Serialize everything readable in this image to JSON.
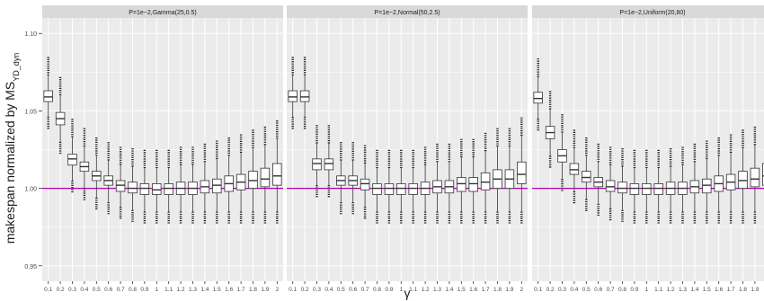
{
  "chart_data": {
    "type": "boxplot",
    "ylabel_main": "makespan normalized by MS",
    "ylabel_sub": "YD_dyn",
    "xlabel": "γ",
    "ylim": [
      0.94,
      1.11
    ],
    "yticks": [
      0.95,
      1.0,
      1.05,
      1.1
    ],
    "ytick_labels": [
      "0.95",
      "1.00",
      "1.05",
      "1.10"
    ],
    "reference_line": {
      "y": 1.0,
      "color": "#b000b0"
    },
    "colors": {
      "panel_bg": "#ebebeb",
      "strip_bg": "#d9d9d9",
      "grid": "#ffffff",
      "box_fill": "#ffffff",
      "box_stroke": "#333333"
    },
    "categories": [
      "0.1",
      "0.2",
      "0.3",
      "0.4",
      "0.5",
      "0.6",
      "0.7",
      "0.8",
      "0.9",
      "1",
      "1.1",
      "1.2",
      "1.3",
      "1.4",
      "1.5",
      "1.6",
      "1.7",
      "1.8",
      "1.9",
      "2"
    ],
    "panels": [
      {
        "title": "P=1e−2,Gamma(25,0.5)",
        "boxes": [
          {
            "x": "0.1",
            "q1": 1.056,
            "median": 1.059,
            "q3": 1.063,
            "whislo": 1.046,
            "whishi": 1.073
          },
          {
            "x": "0.2",
            "q1": 1.041,
            "median": 1.045,
            "q3": 1.049,
            "whislo": 1.03,
            "whishi": 1.06
          },
          {
            "x": "0.3",
            "q1": 1.015,
            "median": 1.019,
            "q3": 1.022,
            "whislo": 1.005,
            "whishi": 1.033
          },
          {
            "x": "0.4",
            "q1": 1.011,
            "median": 1.014,
            "q3": 1.017,
            "whislo": 1.0,
            "whishi": 1.027
          },
          {
            "x": "0.5",
            "q1": 1.005,
            "median": 1.008,
            "q3": 1.011,
            "whislo": 0.994,
            "whishi": 1.021
          },
          {
            "x": "0.6",
            "q1": 1.002,
            "median": 1.005,
            "q3": 1.008,
            "whislo": 0.991,
            "whishi": 1.018
          },
          {
            "x": "0.7",
            "q1": 0.998,
            "median": 1.002,
            "q3": 1.005,
            "whislo": 0.988,
            "whishi": 1.015
          },
          {
            "x": "0.8",
            "q1": 0.997,
            "median": 1.0,
            "q3": 1.004,
            "whislo": 0.986,
            "whishi": 1.014
          },
          {
            "x": "0.9",
            "q1": 0.996,
            "median": 1.0,
            "q3": 1.003,
            "whislo": 0.985,
            "whishi": 1.013
          },
          {
            "x": "1",
            "q1": 0.996,
            "median": 0.999,
            "q3": 1.003,
            "whislo": 0.985,
            "whishi": 1.013
          },
          {
            "x": "1.1",
            "q1": 0.996,
            "median": 1.0,
            "q3": 1.003,
            "whislo": 0.985,
            "whishi": 1.013
          },
          {
            "x": "1.2",
            "q1": 0.996,
            "median": 1.0,
            "q3": 1.004,
            "whislo": 0.985,
            "whishi": 1.015
          },
          {
            "x": "1.3",
            "q1": 0.996,
            "median": 1.0,
            "q3": 1.004,
            "whislo": 0.985,
            "whishi": 1.015
          },
          {
            "x": "1.4",
            "q1": 0.997,
            "median": 1.001,
            "q3": 1.005,
            "whislo": 0.985,
            "whishi": 1.017
          },
          {
            "x": "1.5",
            "q1": 0.997,
            "median": 1.002,
            "q3": 1.006,
            "whislo": 0.985,
            "whishi": 1.019
          },
          {
            "x": "1.6",
            "q1": 0.998,
            "median": 1.003,
            "q3": 1.008,
            "whislo": 0.985,
            "whishi": 1.021
          },
          {
            "x": "1.7",
            "q1": 0.999,
            "median": 1.004,
            "q3": 1.009,
            "whislo": 0.985,
            "whishi": 1.023
          },
          {
            "x": "1.8",
            "q1": 1.0,
            "median": 1.005,
            "q3": 1.011,
            "whislo": 0.985,
            "whishi": 1.026
          },
          {
            "x": "1.9",
            "q1": 1.001,
            "median": 1.006,
            "q3": 1.013,
            "whislo": 0.985,
            "whishi": 1.028
          },
          {
            "x": "2",
            "q1": 1.002,
            "median": 1.008,
            "q3": 1.016,
            "whislo": 0.985,
            "whishi": 1.032
          }
        ]
      },
      {
        "title": "P=1e−2,Normal(50,2.5)",
        "boxes": [
          {
            "x": "0.1",
            "q1": 1.056,
            "median": 1.059,
            "q3": 1.063,
            "whislo": 1.046,
            "whishi": 1.073
          },
          {
            "x": "0.2",
            "q1": 1.056,
            "median": 1.059,
            "q3": 1.063,
            "whislo": 1.046,
            "whishi": 1.073
          },
          {
            "x": "0.3",
            "q1": 1.012,
            "median": 1.016,
            "q3": 1.019,
            "whislo": 1.002,
            "whishi": 1.029
          },
          {
            "x": "0.4",
            "q1": 1.012,
            "median": 1.016,
            "q3": 1.019,
            "whislo": 1.002,
            "whishi": 1.029
          },
          {
            "x": "0.5",
            "q1": 1.002,
            "median": 1.005,
            "q3": 1.008,
            "whislo": 0.991,
            "whishi": 1.018
          },
          {
            "x": "0.6",
            "q1": 1.002,
            "median": 1.005,
            "q3": 1.008,
            "whislo": 0.991,
            "whishi": 1.018
          },
          {
            "x": "0.7",
            "q1": 0.999,
            "median": 1.003,
            "q3": 1.006,
            "whislo": 0.988,
            "whishi": 1.016
          },
          {
            "x": "0.8",
            "q1": 0.996,
            "median": 1.0,
            "q3": 1.003,
            "whislo": 0.985,
            "whishi": 1.013
          },
          {
            "x": "0.9",
            "q1": 0.996,
            "median": 1.0,
            "q3": 1.003,
            "whislo": 0.985,
            "whishi": 1.013
          },
          {
            "x": "1",
            "q1": 0.996,
            "median": 1.0,
            "q3": 1.003,
            "whislo": 0.985,
            "whishi": 1.013
          },
          {
            "x": "1.1",
            "q1": 0.996,
            "median": 1.0,
            "q3": 1.003,
            "whislo": 0.985,
            "whishi": 1.013
          },
          {
            "x": "1.2",
            "q1": 0.996,
            "median": 1.0,
            "q3": 1.004,
            "whislo": 0.985,
            "whishi": 1.015
          },
          {
            "x": "1.3",
            "q1": 0.997,
            "median": 1.001,
            "q3": 1.005,
            "whislo": 0.985,
            "whishi": 1.017
          },
          {
            "x": "1.4",
            "q1": 0.997,
            "median": 1.001,
            "q3": 1.005,
            "whislo": 0.985,
            "whishi": 1.017
          },
          {
            "x": "1.5",
            "q1": 0.998,
            "median": 1.003,
            "q3": 1.007,
            "whislo": 0.985,
            "whishi": 1.02
          },
          {
            "x": "1.6",
            "q1": 0.998,
            "median": 1.003,
            "q3": 1.007,
            "whislo": 0.985,
            "whishi": 1.02
          },
          {
            "x": "1.7",
            "q1": 0.999,
            "median": 1.004,
            "q3": 1.01,
            "whislo": 0.985,
            "whishi": 1.024
          },
          {
            "x": "1.8",
            "q1": 1.0,
            "median": 1.006,
            "q3": 1.012,
            "whislo": 0.985,
            "whishi": 1.027
          },
          {
            "x": "1.9",
            "q1": 1.0,
            "median": 1.006,
            "q3": 1.012,
            "whislo": 0.985,
            "whishi": 1.027
          },
          {
            "x": "2",
            "q1": 1.003,
            "median": 1.009,
            "q3": 1.017,
            "whislo": 0.985,
            "whishi": 1.034
          }
        ]
      },
      {
        "title": "P=1e−2,Uniform(20,80)",
        "boxes": [
          {
            "x": "0.1",
            "q1": 1.055,
            "median": 1.058,
            "q3": 1.062,
            "whislo": 1.045,
            "whishi": 1.072
          },
          {
            "x": "0.2",
            "q1": 1.032,
            "median": 1.036,
            "q3": 1.04,
            "whislo": 1.021,
            "whishi": 1.051
          },
          {
            "x": "0.3",
            "q1": 1.017,
            "median": 1.021,
            "q3": 1.025,
            "whislo": 1.006,
            "whishi": 1.036
          },
          {
            "x": "0.4",
            "q1": 1.009,
            "median": 1.012,
            "q3": 1.016,
            "whislo": 0.998,
            "whishi": 1.026
          },
          {
            "x": "0.5",
            "q1": 1.004,
            "median": 1.007,
            "q3": 1.011,
            "whislo": 0.993,
            "whishi": 1.021
          },
          {
            "x": "0.6",
            "q1": 1.001,
            "median": 1.004,
            "q3": 1.007,
            "whislo": 0.99,
            "whishi": 1.017
          },
          {
            "x": "0.7",
            "q1": 0.998,
            "median": 1.001,
            "q3": 1.005,
            "whislo": 0.987,
            "whishi": 1.015
          },
          {
            "x": "0.8",
            "q1": 0.997,
            "median": 1.0,
            "q3": 1.004,
            "whislo": 0.986,
            "whishi": 1.014
          },
          {
            "x": "0.9",
            "q1": 0.996,
            "median": 1.0,
            "q3": 1.003,
            "whislo": 0.985,
            "whishi": 1.013
          },
          {
            "x": "1",
            "q1": 0.996,
            "median": 1.0,
            "q3": 1.003,
            "whislo": 0.985,
            "whishi": 1.013
          },
          {
            "x": "1.1",
            "q1": 0.996,
            "median": 1.0,
            "q3": 1.003,
            "whislo": 0.985,
            "whishi": 1.013
          },
          {
            "x": "1.2",
            "q1": 0.996,
            "median": 1.0,
            "q3": 1.004,
            "whislo": 0.985,
            "whishi": 1.014
          },
          {
            "x": "1.3",
            "q1": 0.996,
            "median": 1.0,
            "q3": 1.004,
            "whislo": 0.985,
            "whishi": 1.015
          },
          {
            "x": "1.4",
            "q1": 0.997,
            "median": 1.001,
            "q3": 1.005,
            "whislo": 0.985,
            "whishi": 1.017
          },
          {
            "x": "1.5",
            "q1": 0.997,
            "median": 1.002,
            "q3": 1.006,
            "whislo": 0.985,
            "whishi": 1.019
          },
          {
            "x": "1.6",
            "q1": 0.998,
            "median": 1.003,
            "q3": 1.008,
            "whislo": 0.985,
            "whishi": 1.021
          },
          {
            "x": "1.7",
            "q1": 0.999,
            "median": 1.004,
            "q3": 1.009,
            "whislo": 0.985,
            "whishi": 1.023
          },
          {
            "x": "1.8",
            "q1": 1.0,
            "median": 1.005,
            "q3": 1.011,
            "whislo": 0.985,
            "whishi": 1.026
          },
          {
            "x": "1.9",
            "q1": 1.001,
            "median": 1.006,
            "q3": 1.013,
            "whislo": 0.985,
            "whishi": 1.028
          },
          {
            "x": "2",
            "q1": 1.002,
            "median": 1.008,
            "q3": 1.016,
            "whislo": 0.985,
            "whishi": 1.032
          }
        ]
      }
    ]
  }
}
